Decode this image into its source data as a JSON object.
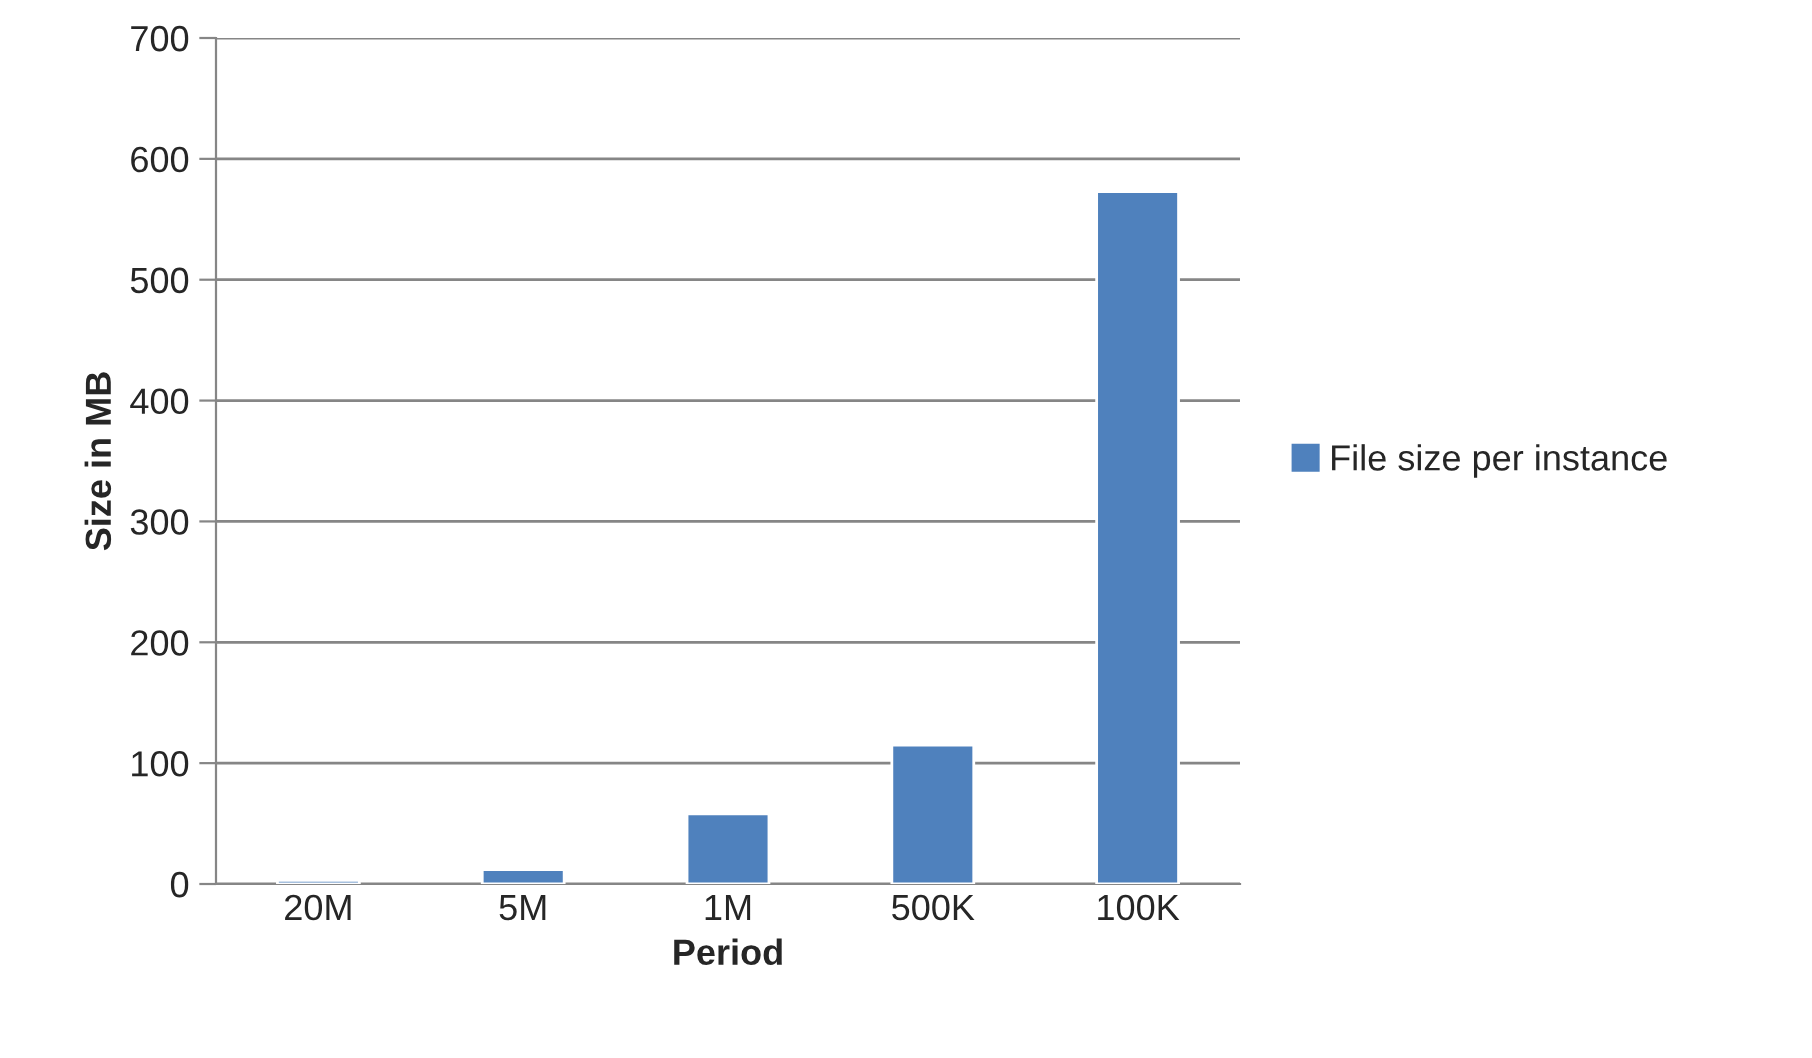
{
  "chart_data": {
    "type": "bar",
    "xlabel": "Period",
    "ylabel": "Size in MB",
    "categories": [
      "20M",
      "5M",
      "1M",
      "500K",
      "100K"
    ],
    "series": [
      {
        "name": "File size per instance",
        "color": "#4f81bd",
        "values": [
          3,
          12,
          58,
          115,
          573
        ]
      }
    ],
    "ylim": [
      0,
      700
    ],
    "yticks": [
      0,
      100,
      200,
      300,
      400,
      500,
      600,
      700
    ],
    "grid": "y",
    "legend": "right"
  }
}
